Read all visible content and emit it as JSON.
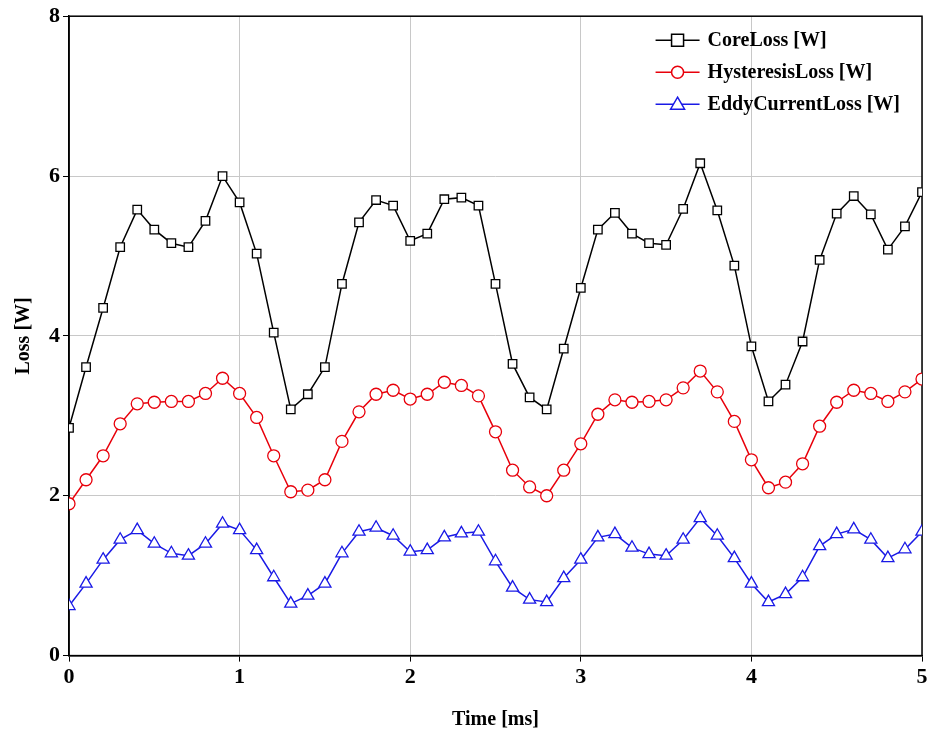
{
  "chart_data": {
    "type": "line",
    "x_label": "Time [ms]",
    "y_label": "Loss [W]",
    "x": [
      0,
      0.1,
      0.2,
      0.3,
      0.4,
      0.5,
      0.6,
      0.7,
      0.8,
      0.9,
      1.0,
      1.1,
      1.2,
      1.3,
      1.4,
      1.5,
      1.6,
      1.7,
      1.8,
      1.9,
      2.0,
      2.1,
      2.2,
      2.3,
      2.4,
      2.5,
      2.6,
      2.7,
      2.8,
      2.9,
      3.0,
      3.1,
      3.2,
      3.3,
      3.4,
      3.5,
      3.6,
      3.7,
      3.8,
      3.9,
      4.0,
      4.1,
      4.2,
      4.3,
      4.4,
      4.5,
      4.6,
      4.7,
      4.8,
      4.9,
      5.0
    ],
    "series": [
      {
        "name": "CoreLoss [W]",
        "color": "#000000",
        "marker": "square",
        "values": [
          2.85,
          3.61,
          4.35,
          5.11,
          5.58,
          5.33,
          5.16,
          5.11,
          5.44,
          6.0,
          5.67,
          5.03,
          4.04,
          3.08,
          3.27,
          3.61,
          4.65,
          5.42,
          5.7,
          5.63,
          5.19,
          5.28,
          5.71,
          5.73,
          5.63,
          4.65,
          3.65,
          3.23,
          3.08,
          3.84,
          4.6,
          5.33,
          5.54,
          5.28,
          5.16,
          5.14,
          5.59,
          6.16,
          5.57,
          4.88,
          3.87,
          3.18,
          3.39,
          3.93,
          4.95,
          5.53,
          5.75,
          5.52,
          5.08,
          5.37,
          5.8
        ]
      },
      {
        "name": "HysteresisLoss [W]",
        "color": "#e8000b",
        "marker": "circle",
        "values": [
          1.9,
          2.2,
          2.5,
          2.9,
          3.15,
          3.17,
          3.18,
          3.18,
          3.28,
          3.47,
          3.28,
          2.98,
          2.5,
          2.05,
          2.07,
          2.2,
          2.68,
          3.05,
          3.27,
          3.32,
          3.21,
          3.27,
          3.42,
          3.38,
          3.25,
          2.8,
          2.32,
          2.11,
          2.0,
          2.32,
          2.65,
          3.02,
          3.2,
          3.17,
          3.18,
          3.2,
          3.35,
          3.56,
          3.3,
          2.93,
          2.45,
          2.1,
          2.17,
          2.4,
          2.87,
          3.17,
          3.32,
          3.28,
          3.18,
          3.3,
          3.46
        ]
      },
      {
        "name": "EddyCurrentLoss [W]",
        "color": "#1a1ae6",
        "marker": "triangle",
        "values": [
          0.62,
          0.9,
          1.2,
          1.45,
          1.57,
          1.4,
          1.28,
          1.25,
          1.4,
          1.65,
          1.57,
          1.32,
          0.98,
          0.65,
          0.75,
          0.9,
          1.28,
          1.55,
          1.6,
          1.5,
          1.3,
          1.32,
          1.48,
          1.53,
          1.55,
          1.18,
          0.85,
          0.7,
          0.67,
          0.97,
          1.2,
          1.48,
          1.52,
          1.35,
          1.27,
          1.25,
          1.45,
          1.72,
          1.5,
          1.22,
          0.9,
          0.67,
          0.77,
          0.98,
          1.37,
          1.52,
          1.58,
          1.45,
          1.22,
          1.33,
          1.55
        ]
      }
    ],
    "xlim": [
      0,
      5
    ],
    "xticks": [
      0,
      1,
      2,
      3,
      4,
      5
    ],
    "ylim": [
      0,
      8
    ],
    "yticks": [
      0,
      2,
      4,
      6,
      8
    ],
    "grid": true,
    "legend": "top-right"
  }
}
